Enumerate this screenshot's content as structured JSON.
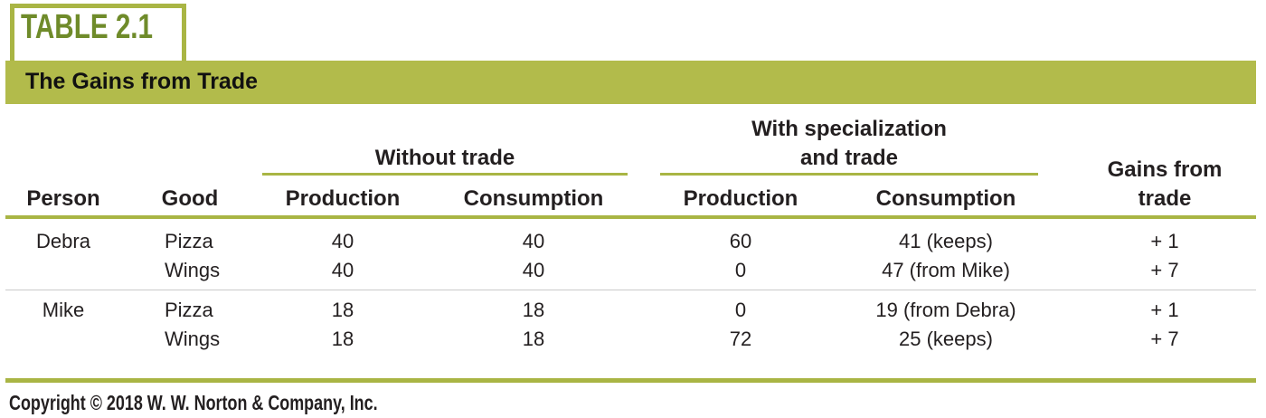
{
  "table_label": "TABLE 2.1",
  "title": "The Gains from Trade",
  "group_headers": {
    "without_trade": "Without trade",
    "with_trade_line1": "With specialization",
    "with_trade_line2": "and trade",
    "gains_line1": "Gains from",
    "gains_line2": "trade"
  },
  "columns": {
    "person": "Person",
    "good": "Good",
    "wt_production": "Production",
    "wt_consumption": "Consumption",
    "st_production": "Production",
    "st_consumption": "Consumption"
  },
  "rows": [
    {
      "person": "Debra",
      "good": "Pizza",
      "wt_production": "40",
      "wt_consumption": "40",
      "st_production": "60",
      "st_consumption": "41 (keeps)",
      "gains": "+ 1"
    },
    {
      "person": "",
      "good": "Wings",
      "wt_production": "40",
      "wt_consumption": "40",
      "st_production": "0",
      "st_consumption": "47 (from Mike)",
      "gains": "+ 7"
    },
    {
      "person": "Mike",
      "good": "Pizza",
      "wt_production": "18",
      "wt_consumption": "18",
      "st_production": "0",
      "st_consumption": "19 (from Debra)",
      "gains": "+ 1"
    },
    {
      "person": "",
      "good": "Wings",
      "wt_production": "18",
      "wt_consumption": "18",
      "st_production": "72",
      "st_consumption": "25 (keeps)",
      "gains": "+ 7"
    }
  ],
  "copyright": "Copyright © 2018 W. W. Norton & Company, Inc.",
  "colors": {
    "accent": "#b2bb4b",
    "label_text": "#6f8b2a"
  }
}
